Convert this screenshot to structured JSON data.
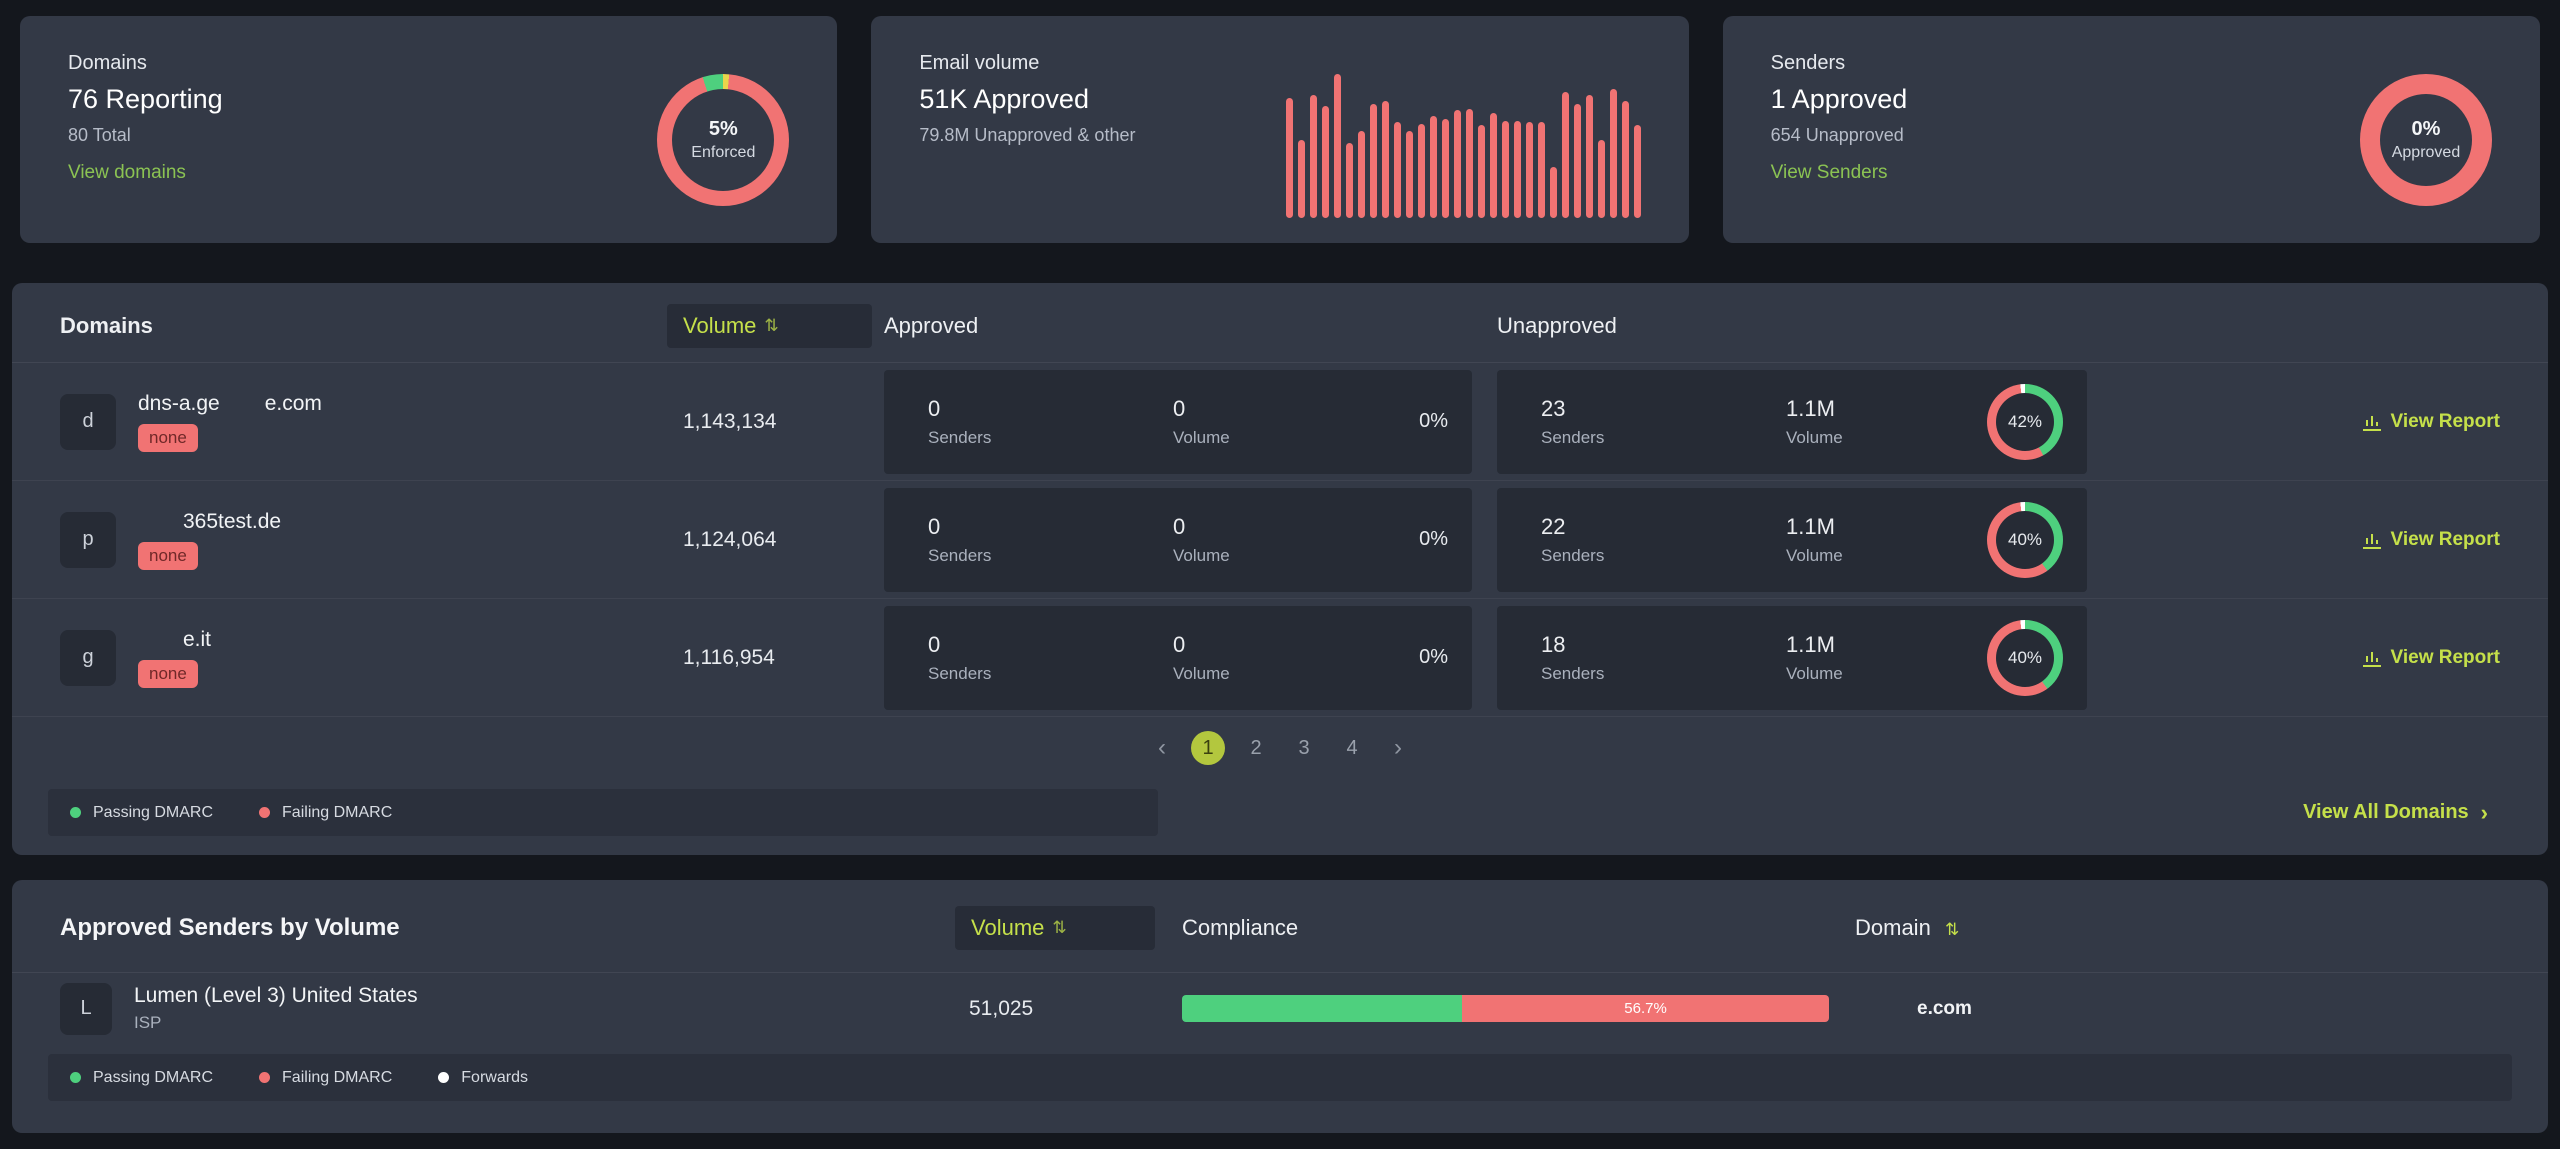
{
  "colors": {
    "accent": "#c5e04a",
    "link_green": "#8bc353",
    "pass_green": "#4ed07e",
    "fail_red": "#f17373",
    "enforce_yellow": "#e9d44b",
    "forwards_white": "#ffffff"
  },
  "cards": {
    "domains": {
      "title": "Domains",
      "headline": "76 Reporting",
      "sub": "80 Total",
      "link": "View domains",
      "donut": {
        "center_value": "5%",
        "center_label": "Enforced",
        "segments": [
          {
            "name": "other",
            "color": "#e9d44b",
            "pct": 1.5
          },
          {
            "name": "not-enforced",
            "color": "#f17373",
            "pct": 93.5
          },
          {
            "name": "enforced",
            "color": "#4ed07e",
            "pct": 5
          }
        ]
      }
    },
    "email_volume": {
      "title": "Email volume",
      "headline": "51K Approved",
      "sub": "79.8M Unapproved & other",
      "chart": {
        "type": "bar",
        "color": "#f17373",
        "unit": "relative-height-pct",
        "values": [
          80,
          52,
          82,
          75,
          96,
          50,
          58,
          76,
          78,
          64,
          58,
          63,
          68,
          66,
          72,
          73,
          62,
          70,
          65,
          65,
          64,
          64,
          34,
          84,
          76,
          82,
          52,
          86,
          78,
          62
        ]
      }
    },
    "senders": {
      "title": "Senders",
      "headline": "1 Approved",
      "sub": "654 Unapproved",
      "link": "View Senders",
      "donut": {
        "center_value": "0%",
        "center_label": "Approved",
        "segments": [
          {
            "name": "unapproved",
            "color": "#f17373",
            "pct": 100
          }
        ]
      }
    }
  },
  "domains_table": {
    "headers": {
      "domains": "Domains",
      "volume": "Volume",
      "approved": "Approved",
      "unapproved": "Unapproved",
      "sort_icon": "⇅"
    },
    "rows": [
      {
        "avatar": "d",
        "name_part1": "dns-a.ge",
        "name_part2": "e.com",
        "policy": "none",
        "volume": "1,143,134",
        "approved": {
          "senders": "0",
          "senders_label": "Senders",
          "volume": "0",
          "volume_label": "Volume",
          "pct": "0%"
        },
        "unapproved": {
          "senders": "23",
          "senders_label": "Senders",
          "volume": "1.1M",
          "volume_label": "Volume",
          "donut": {
            "center_value": "42%",
            "segments": [
              {
                "name": "passing",
                "color": "#4ed07e",
                "pct": 42
              },
              {
                "name": "failing",
                "color": "#f17373",
                "pct": 56
              },
              {
                "name": "forwards",
                "color": "#ffffff",
                "pct": 2
              }
            ]
          }
        },
        "action": "View Report"
      },
      {
        "avatar": "p",
        "name_part1": "",
        "name_part2": "365test.de",
        "policy": "none",
        "volume": "1,124,064",
        "approved": {
          "senders": "0",
          "senders_label": "Senders",
          "volume": "0",
          "volume_label": "Volume",
          "pct": "0%"
        },
        "unapproved": {
          "senders": "22",
          "senders_label": "Senders",
          "volume": "1.1M",
          "volume_label": "Volume",
          "donut": {
            "center_value": "40%",
            "segments": [
              {
                "name": "passing",
                "color": "#4ed07e",
                "pct": 40
              },
              {
                "name": "failing",
                "color": "#f17373",
                "pct": 58
              },
              {
                "name": "forwards",
                "color": "#ffffff",
                "pct": 2
              }
            ]
          }
        },
        "action": "View Report"
      },
      {
        "avatar": "g",
        "name_part1": "",
        "name_part2": "e.it",
        "policy": "none",
        "volume": "1,116,954",
        "approved": {
          "senders": "0",
          "senders_label": "Senders",
          "volume": "0",
          "volume_label": "Volume",
          "pct": "0%"
        },
        "unapproved": {
          "senders": "18",
          "senders_label": "Senders",
          "volume": "1.1M",
          "volume_label": "Volume",
          "donut": {
            "center_value": "40%",
            "segments": [
              {
                "name": "passing",
                "color": "#4ed07e",
                "pct": 40
              },
              {
                "name": "failing",
                "color": "#f17373",
                "pct": 58
              },
              {
                "name": "forwards",
                "color": "#ffffff",
                "pct": 2
              }
            ]
          }
        },
        "action": "View Report"
      }
    ],
    "pagination": {
      "prev": "‹",
      "pages": [
        "1",
        "2",
        "3",
        "4"
      ],
      "active": "1",
      "next": "›"
    },
    "legend": [
      {
        "label": "Passing DMARC",
        "color": "#4ed07e"
      },
      {
        "label": "Failing DMARC",
        "color": "#f17373"
      }
    ],
    "view_all": "View All Domains",
    "view_all_arrow": "›"
  },
  "approved_senders": {
    "title": "Approved Senders by Volume",
    "headers": {
      "volume": "Volume",
      "compliance": "Compliance",
      "domain": "Domain",
      "sort_icon": "⇅"
    },
    "rows": [
      {
        "avatar": "L",
        "name": "Lumen (Level 3) United States",
        "type": "ISP",
        "volume": "51,025",
        "compliance": {
          "passing_pct": 43.3,
          "failing_pct": 56.7,
          "label": "56.7%"
        },
        "domain": "e.com"
      }
    ],
    "legend": [
      {
        "label": "Passing DMARC",
        "color": "#4ed07e"
      },
      {
        "label": "Failing DMARC",
        "color": "#f17373"
      },
      {
        "label": "Forwards",
        "color": "#ffffff"
      }
    ]
  }
}
